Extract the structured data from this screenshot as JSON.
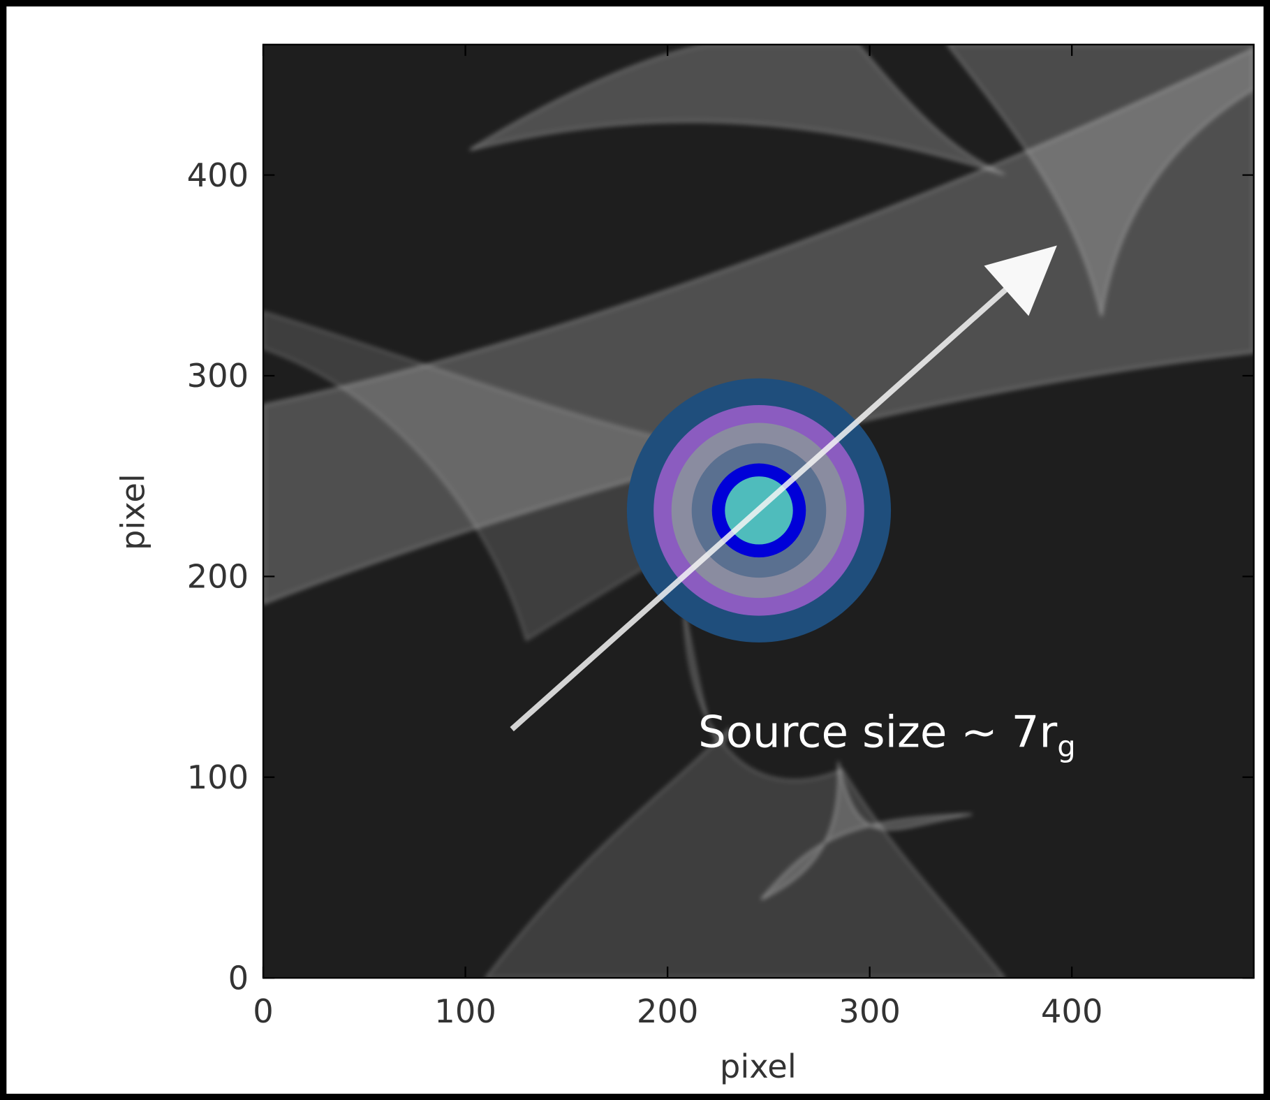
{
  "chart_data": {
    "type": "image",
    "xlabel": "pixel",
    "ylabel": "pixel",
    "xlim": [
      0,
      490
    ],
    "ylim": [
      0,
      465
    ],
    "xticks": [
      0,
      100,
      200,
      300,
      400
    ],
    "yticks": [
      0,
      100,
      200,
      300,
      400
    ],
    "annotation": "Source size ~ 7r",
    "annotation_subscript": "g"
  }
}
